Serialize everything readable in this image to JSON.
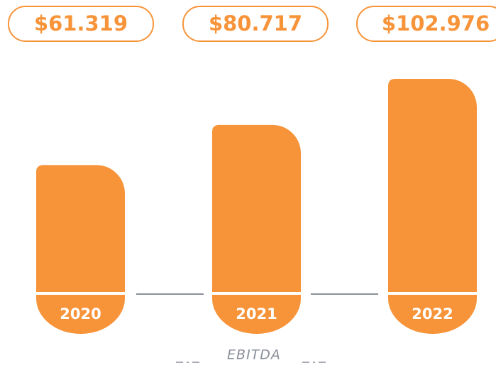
{
  "chart_data": {
    "type": "bar",
    "categories": [
      "2020",
      "2021",
      "2022"
    ],
    "values": [
      61319,
      80717,
      102976
    ],
    "value_labels": [
      "$61.319",
      "$80.717",
      "$102.976"
    ],
    "color": "#f7943a",
    "x_label": "EBITDA"
  }
}
